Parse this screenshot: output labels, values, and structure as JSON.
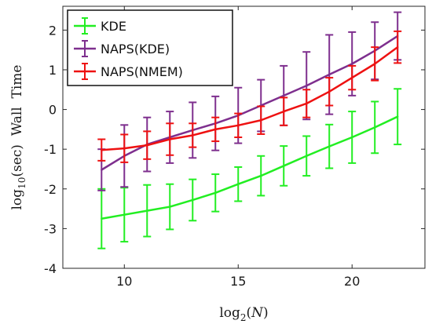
{
  "chart_data": {
    "type": "line",
    "title": "",
    "xlabel": {
      "base": "log",
      "sub": "2",
      "arg": "N"
    },
    "ylabel": {
      "base": "log",
      "sub": "10",
      "rest": "(sec)  Wall  Time"
    },
    "xlim": [
      7.3,
      23.2
    ],
    "ylim": [
      -4,
      2.6
    ],
    "xticks": [
      10,
      15,
      20
    ],
    "yticks": [
      -4,
      -3,
      -2,
      -1,
      0,
      1,
      2
    ],
    "ytick_labels": [
      "-4",
      "-3",
      "-2",
      "-1",
      "0",
      "1",
      "2"
    ],
    "xtick_labels": [
      "10",
      "15",
      "20"
    ],
    "grid": false,
    "legend": {
      "position": "top-left"
    },
    "x": [
      9,
      10,
      11,
      12,
      13,
      14,
      15,
      16,
      17,
      18,
      19,
      20,
      21,
      22
    ],
    "series": [
      {
        "name": "KDE",
        "color": "#22ee22",
        "y": [
          -2.75,
          -2.65,
          -2.55,
          -2.45,
          -2.28,
          -2.1,
          -1.88,
          -1.67,
          -1.42,
          -1.17,
          -0.93,
          -0.7,
          -0.45,
          -0.18
        ],
        "err": [
          0.75,
          0.68,
          0.65,
          0.57,
          0.52,
          0.47,
          0.43,
          0.5,
          0.5,
          0.5,
          0.55,
          0.65,
          0.65,
          0.7
        ]
      },
      {
        "name": "NAPS(KDE)",
        "color": "#7e2f8e",
        "y": [
          -1.52,
          -1.17,
          -0.88,
          -0.7,
          -0.52,
          -0.35,
          -0.15,
          0.1,
          0.35,
          0.6,
          0.88,
          1.15,
          1.48,
          1.85
        ],
        "err": [
          0.52,
          0.78,
          0.68,
          0.65,
          0.7,
          0.68,
          0.7,
          0.65,
          0.75,
          0.85,
          1.0,
          0.8,
          0.72,
          0.6
        ]
      },
      {
        "name": "NAPS(NMEM)",
        "color": "#ee1111",
        "y": [
          -1.02,
          -0.98,
          -0.9,
          -0.75,
          -0.65,
          -0.5,
          -0.4,
          -0.27,
          -0.05,
          0.15,
          0.45,
          0.8,
          1.15,
          1.57
        ],
        "err": [
          0.27,
          0.35,
          0.35,
          0.4,
          0.3,
          0.3,
          0.3,
          0.35,
          0.35,
          0.35,
          0.35,
          0.3,
          0.42,
          0.4
        ]
      }
    ]
  }
}
